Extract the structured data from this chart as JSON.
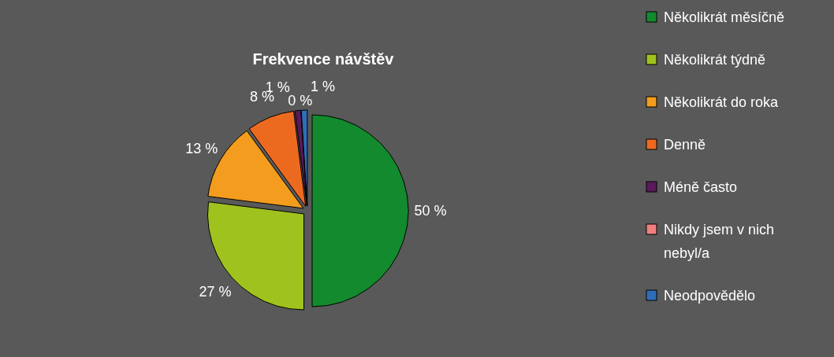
{
  "chart_data": {
    "type": "pie",
    "title": "Frekvence návštěv",
    "categories": [
      "Několikrát měsíčně",
      "Několikrát týdně",
      "Několikrát do roka",
      "Denně",
      "Méně často",
      "Nikdy jsem v nich nebyl/a",
      "Neodpovědělo"
    ],
    "values": [
      50,
      27,
      13,
      8,
      1,
      0,
      1
    ],
    "colors": [
      "#138a2e",
      "#a0c21e",
      "#f39c1e",
      "#ec6a20",
      "#5a1a5a",
      "#f08080",
      "#2e6eb8"
    ],
    "value_labels": [
      "50 %",
      "27 %",
      "13 %",
      "8 %",
      "1 %",
      "0 %",
      "1 %"
    ],
    "legend": "right"
  }
}
